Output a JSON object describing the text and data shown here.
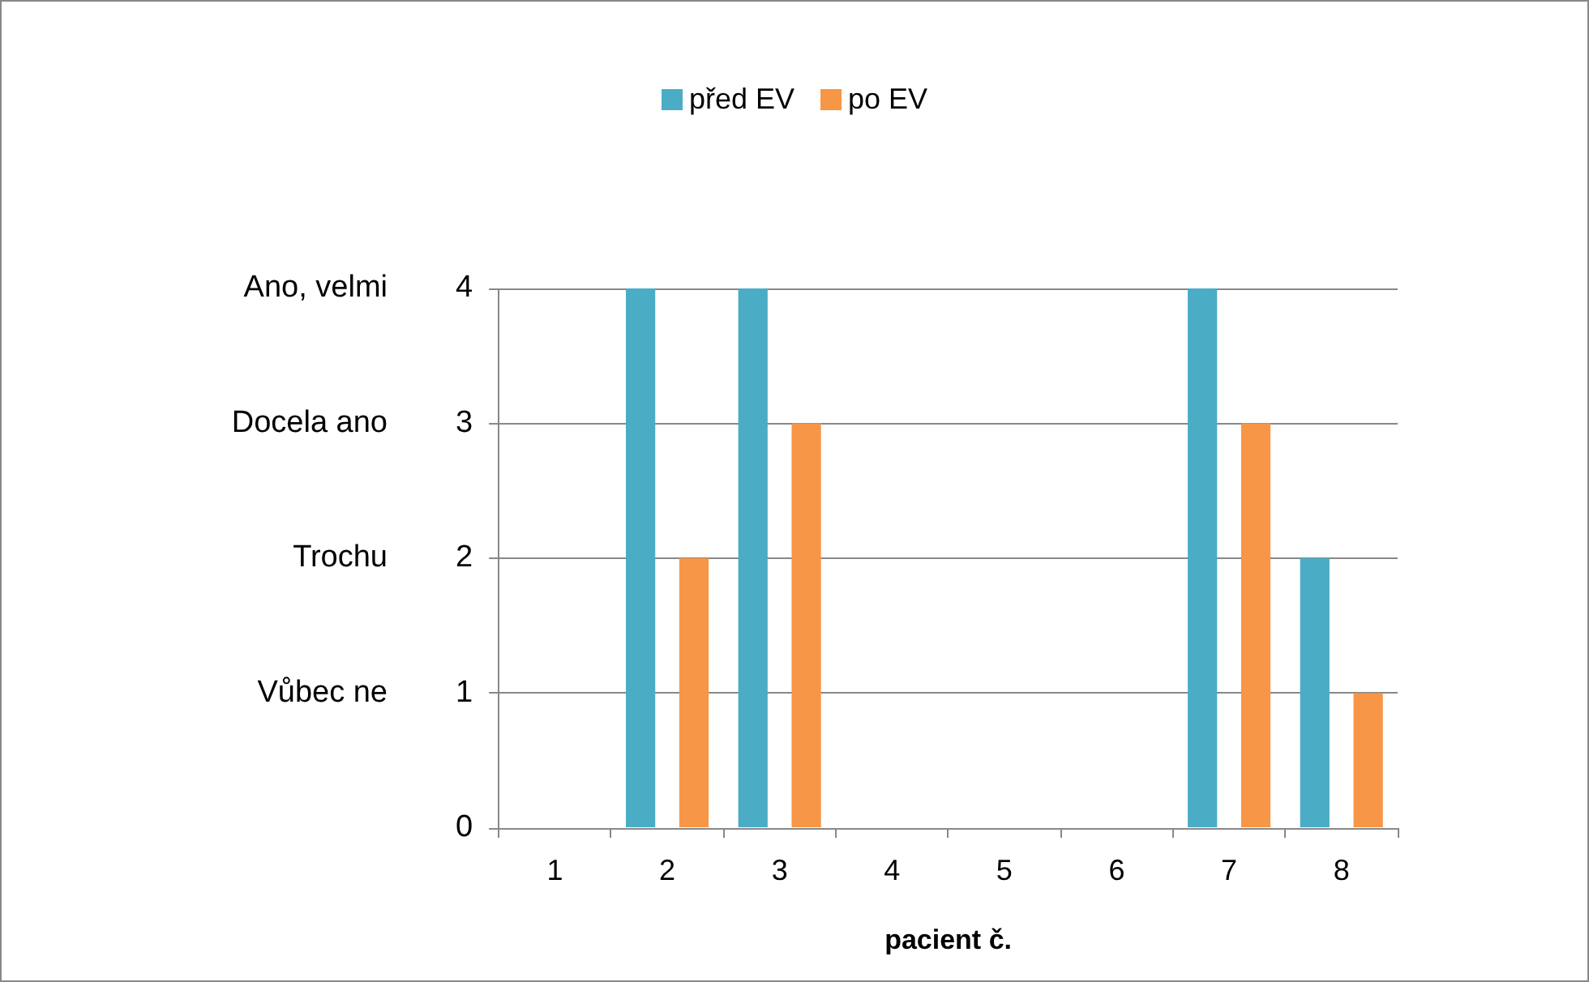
{
  "chart_data": {
    "type": "bar",
    "xlabel": "pacient č.",
    "categories": [
      "1",
      "2",
      "3",
      "4",
      "5",
      "6",
      "7",
      "8"
    ],
    "series": [
      {
        "name": "před EV",
        "color": "#4bacc6",
        "values": [
          null,
          4,
          4,
          null,
          null,
          null,
          4,
          2
        ]
      },
      {
        "name": "po EV",
        "color": "#f79646",
        "values": [
          null,
          2,
          3,
          null,
          null,
          null,
          3,
          1
        ]
      }
    ],
    "ylim": [
      0,
      4
    ],
    "yticks": [
      0,
      1,
      2,
      3,
      4
    ],
    "grid": "y",
    "legend": "top",
    "annotations": [
      "Ano, velmi",
      "Docela ano",
      "Trochu",
      "Vůbec ne"
    ]
  }
}
